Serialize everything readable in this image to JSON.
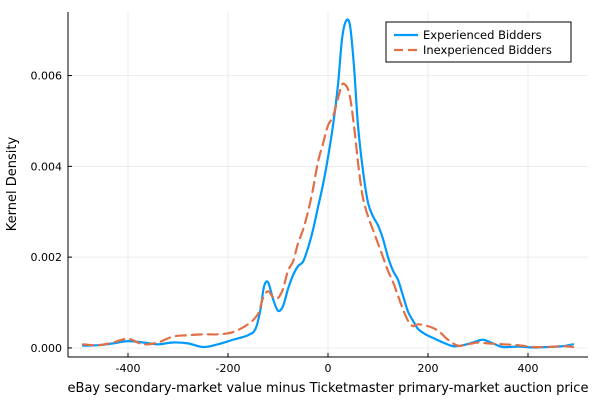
{
  "chart_data": {
    "type": "line",
    "xlabel": "eBay secondary-market value minus Ticketmaster primary-market auction price",
    "ylabel": "Kernel Density",
    "xlim": [
      -520,
      520
    ],
    "ylim": [
      -0.0002,
      0.0074
    ],
    "x_ticks": [
      -400,
      -200,
      0,
      200,
      400
    ],
    "x_tick_labels": [
      "-400",
      "-200",
      "0",
      "200",
      "400"
    ],
    "y_ticks": [
      0.0,
      0.002,
      0.004,
      0.006
    ],
    "y_tick_labels": [
      "0.000",
      "0.002",
      "0.004",
      "0.006"
    ],
    "grid": true,
    "legend_position": "top-right",
    "series": [
      {
        "name": "Experienced Bidders",
        "color": "#009AFA",
        "style": "solid",
        "x": [
          -490,
          -460,
          -430,
          -400,
          -370,
          -340,
          -310,
          -280,
          -250,
          -220,
          -190,
          -160,
          -145,
          -135,
          -128,
          -120,
          -110,
          -100,
          -90,
          -80,
          -70,
          -60,
          -50,
          -40,
          -30,
          -20,
          -10,
          0,
          10,
          20,
          28,
          36,
          44,
          52,
          60,
          70,
          80,
          90,
          100,
          110,
          120,
          130,
          140,
          150,
          160,
          170,
          180,
          195,
          210,
          230,
          250,
          270,
          290,
          310,
          330,
          350,
          380,
          410,
          440,
          470,
          490
        ],
        "y": [
          5e-05,
          6e-05,
          0.0001,
          0.00015,
          0.00012,
          8e-05,
          0.00012,
          0.0001,
          2e-05,
          8e-05,
          0.00018,
          0.00028,
          0.00042,
          0.00085,
          0.00135,
          0.00145,
          0.00108,
          0.00082,
          0.00092,
          0.0013,
          0.0016,
          0.0018,
          0.0019,
          0.0022,
          0.0026,
          0.0031,
          0.0036,
          0.0042,
          0.0049,
          0.0058,
          0.0068,
          0.0072,
          0.0071,
          0.0062,
          0.0049,
          0.0039,
          0.0032,
          0.0029,
          0.0027,
          0.0024,
          0.002,
          0.0017,
          0.0015,
          0.00115,
          0.0008,
          0.0006,
          0.00042,
          0.0003,
          0.00022,
          0.00012,
          4e-05,
          6e-05,
          0.00012,
          0.00018,
          0.0001,
          2e-05,
          3e-05,
          1e-05,
          2e-05,
          4e-05,
          8e-05
        ]
      },
      {
        "name": "Inexperienced Bidders",
        "color": "#E26F46",
        "style": "dashed",
        "x": [
          -490,
          -460,
          -430,
          -400,
          -370,
          -340,
          -310,
          -280,
          -250,
          -220,
          -190,
          -160,
          -140,
          -130,
          -120,
          -110,
          -100,
          -90,
          -80,
          -70,
          -60,
          -50,
          -40,
          -30,
          -20,
          -10,
          0,
          10,
          20,
          28,
          34,
          40,
          46,
          54,
          62,
          70,
          80,
          90,
          100,
          110,
          120,
          130,
          140,
          150,
          160,
          170,
          180,
          200,
          220,
          240,
          260,
          280,
          300,
          320,
          350,
          380,
          410,
          440,
          470,
          490
        ],
        "y": [
          8e-05,
          6e-05,
          0.00012,
          0.0002,
          8e-05,
          0.00012,
          0.00025,
          0.00028,
          0.0003,
          0.0003,
          0.00035,
          0.00052,
          0.00075,
          0.0011,
          0.00125,
          0.00112,
          0.0011,
          0.0013,
          0.0017,
          0.0019,
          0.0023,
          0.0026,
          0.003,
          0.0035,
          0.0041,
          0.0045,
          0.0049,
          0.0051,
          0.0055,
          0.0058,
          0.0058,
          0.0057,
          0.0054,
          0.0047,
          0.0039,
          0.0033,
          0.0029,
          0.0026,
          0.0023,
          0.002,
          0.0017,
          0.00145,
          0.00115,
          0.00085,
          0.0006,
          0.00048,
          0.00052,
          0.00048,
          0.00038,
          0.00018,
          5e-05,
          8e-05,
          0.00012,
          0.0001,
          8e-05,
          6e-05,
          2e-05,
          2e-05,
          4e-05,
          2e-05
        ]
      }
    ]
  }
}
